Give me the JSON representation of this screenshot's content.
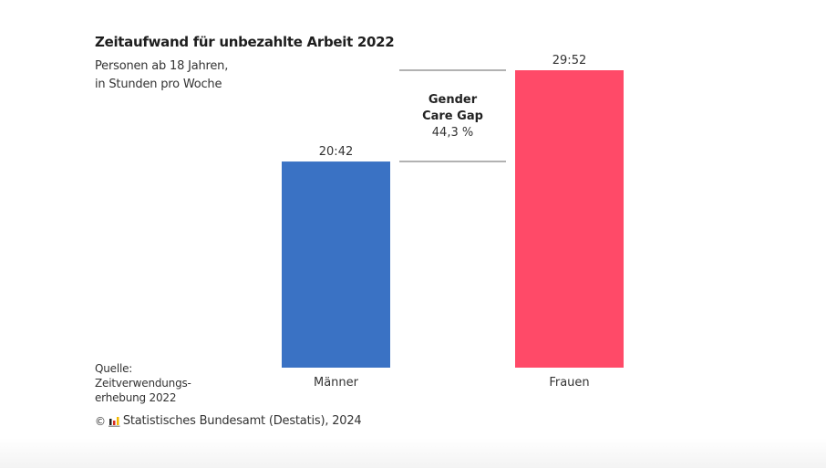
{
  "chart_data": {
    "type": "bar",
    "title": "Zeitaufwand für unbezahlte Arbeit 2022",
    "subtitle": [
      "Personen ab 18 Jahren,",
      "in Stunden pro Woche"
    ],
    "categories": [
      "Männer",
      "Frauen"
    ],
    "values": [
      20.7,
      29.867
    ],
    "value_labels": [
      "20:42",
      "29:52"
    ],
    "colors": [
      "#3a72c4",
      "#ff4a68"
    ],
    "ylim": [
      0,
      29.867
    ],
    "grid": false,
    "annotation": {
      "title_lines": [
        "Gender",
        "Care Gap"
      ],
      "value": "44,3 %"
    },
    "xlabel": "",
    "ylabel": ""
  },
  "source": {
    "lines": [
      "Quelle:",
      "Zeitverwendungs-",
      "erhebung 2022"
    ]
  },
  "copyright": {
    "symbol": "©",
    "logo_icon": "destatis-logo-icon",
    "text": "Statistisches Bundesamt (Destatis), 2024"
  }
}
